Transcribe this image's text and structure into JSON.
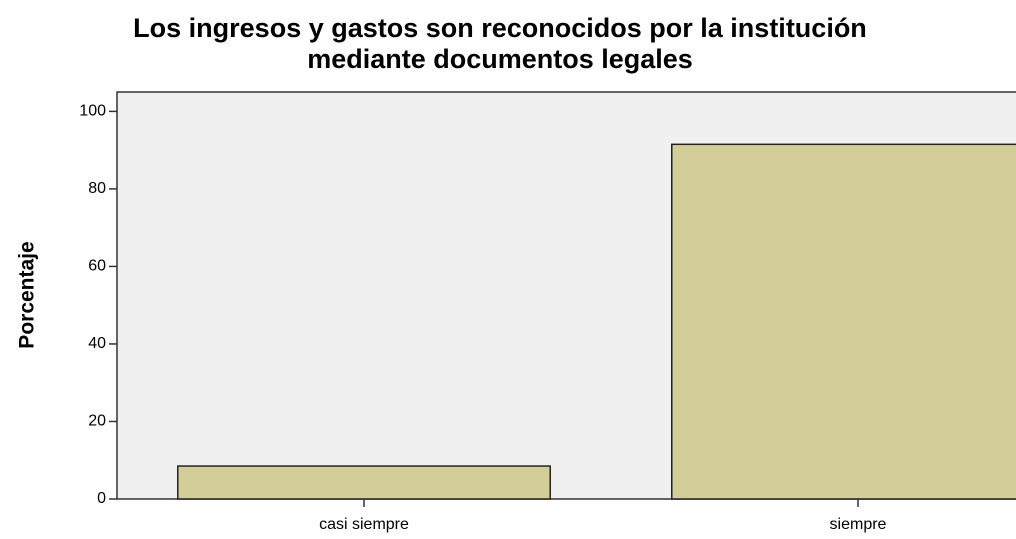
{
  "chart_data": {
    "type": "bar",
    "title": [
      "Los ingresos y gastos son reconocidos por la institución",
      "mediante documentos legales"
    ],
    "y_label": "Porcentaje",
    "categories": [
      "casi siempre",
      "siempre"
    ],
    "values": [
      8.5,
      91.5
    ],
    "color": "#d3ce97",
    "ylim": [
      0,
      105
    ],
    "yticks": [
      0,
      20,
      40,
      60,
      80,
      100
    ],
    "grid": false
  }
}
